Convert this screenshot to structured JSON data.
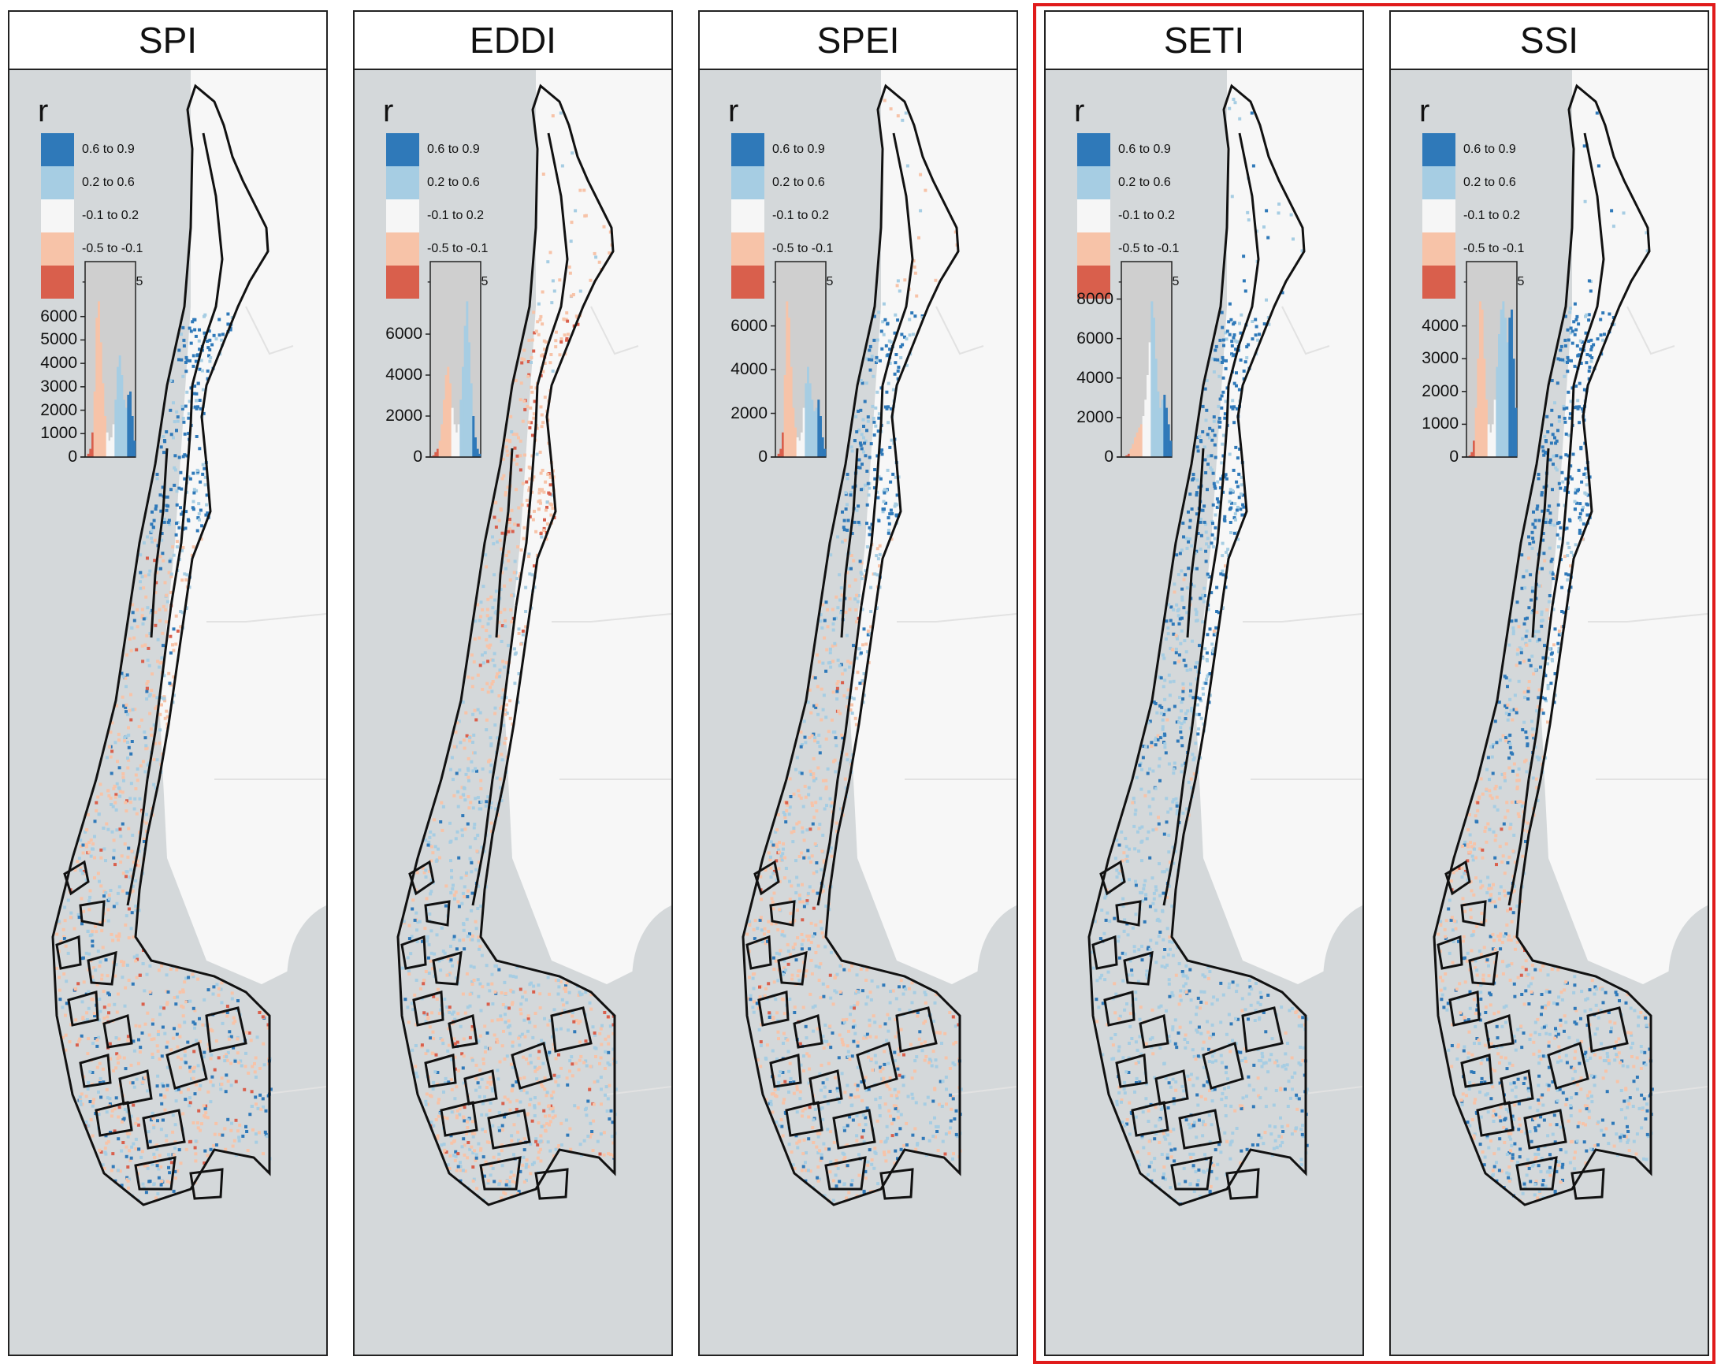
{
  "panels": [
    {
      "title": "SPI",
      "histogram": {
        "ticks": [
          "6000",
          "5000",
          "4000",
          "3000",
          "2000",
          "1000",
          "0"
        ],
        "max": 7000
      }
    },
    {
      "title": "EDDI",
      "histogram": {
        "ticks": [
          "6000",
          "4000",
          "2000",
          "0"
        ],
        "max": 8000
      }
    },
    {
      "title": "SPEI",
      "histogram": {
        "ticks": [
          "6000",
          "4000",
          "2000",
          "0"
        ],
        "max": 7500
      }
    },
    {
      "title": "SETI",
      "histogram": {
        "ticks": [
          "8000",
          "6000",
          "4000",
          "2000",
          "0"
        ],
        "max": 8300
      }
    },
    {
      "title": "SSI",
      "histogram": {
        "ticks": [
          "4000",
          "3000",
          "2000",
          "1000",
          "0"
        ],
        "max": 5000
      }
    }
  ],
  "legend": {
    "title": "r",
    "classes": [
      {
        "label": "0.6 to 0.9",
        "color": "#2f79b9"
      },
      {
        "label": "0.2 to 0.6",
        "color": "#a6cde3"
      },
      {
        "label": "-0.1 to 0.2",
        "color": "#f6f6f6"
      },
      {
        "label": "-0.5 to -0.1",
        "color": "#f7c3a8"
      },
      {
        "label": "-0.8 to -0.5",
        "color": "#d95f4c"
      }
    ]
  },
  "colors": {
    "ocean": "#d4d8da",
    "land": "#f7f7f7",
    "highlight": "#e01b1b"
  }
}
